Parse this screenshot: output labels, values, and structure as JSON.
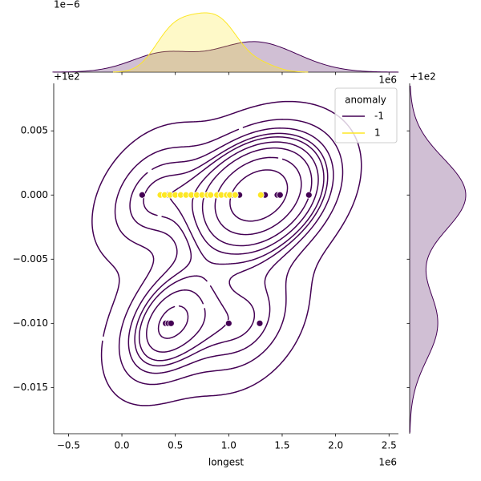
{
  "chart_data": {
    "type": "scatter",
    "xlabel": "longest",
    "x_offset": "1e6",
    "y_offset": "+1e2",
    "marginal_offset": "1e−6",
    "legend_title": "anomaly",
    "legend": "upper right",
    "xlim": [
      -0.638,
      2.588
    ],
    "ylim": [
      -0.0186,
      0.0087
    ],
    "xticks": [
      {
        "value": -0.5,
        "label": "−0.5"
      },
      {
        "value": 0,
        "label": "0.0"
      },
      0.5,
      {
        "value": 1,
        "label": "1.0"
      },
      1.5,
      {
        "value": 2,
        "label": "2.0"
      },
      2.5
    ],
    "yticks": [
      0.005,
      {
        "value": 0,
        "label": "0.000"
      },
      {
        "value": -0.005,
        "label": "−0.005"
      },
      {
        "value": -0.01,
        "label": "−0.010"
      },
      {
        "value": -0.015,
        "label": "−0.015"
      }
    ],
    "series": [
      {
        "name": "-1",
        "color": "#440154",
        "x": [
          0.19,
          0.43,
          0.975,
          1.035,
          1.1,
          1.31,
          1.34,
          1.455,
          1.48,
          1.75,
          0.41,
          0.435,
          0.46,
          1.0,
          1.29
        ],
        "values": [
          0,
          0,
          0,
          0,
          0,
          0,
          0,
          0,
          0,
          0,
          -0.01,
          -0.01,
          -0.01,
          -0.01,
          -0.01
        ]
      },
      {
        "name": "1",
        "color": "#fde725",
        "x": [
          0.36,
          0.4,
          0.45,
          0.5,
          0.55,
          0.6,
          0.65,
          0.7,
          0.75,
          0.8,
          0.83,
          0.89,
          0.93,
          0.98,
          1.01,
          1.06,
          1.3
        ],
        "values": [
          0,
          0,
          0,
          0,
          0,
          0,
          0,
          0,
          0,
          0,
          0,
          0,
          0,
          0,
          0,
          0,
          0
        ]
      }
    ]
  }
}
